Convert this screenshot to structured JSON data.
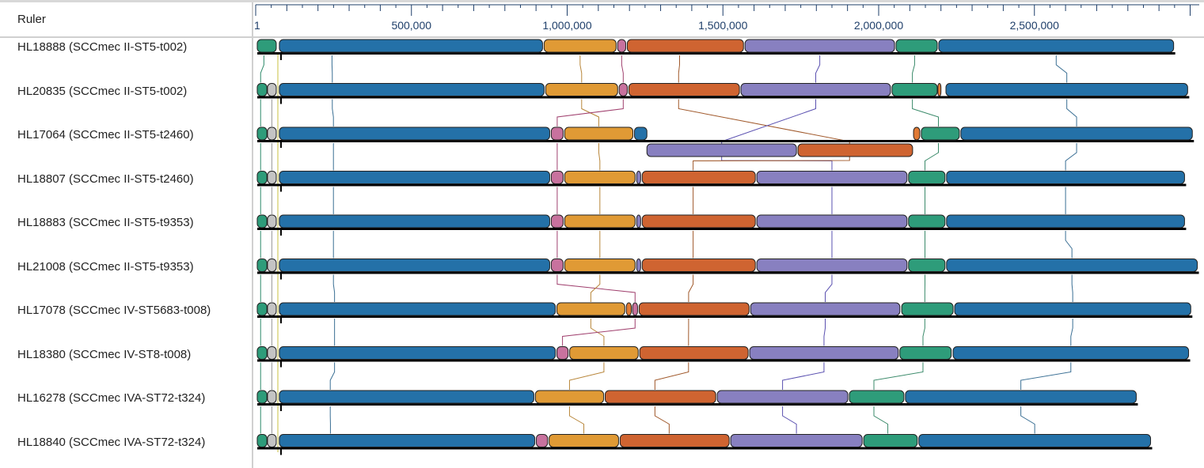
{
  "ruler": {
    "label": "Ruler",
    "ticks": [
      {
        "value": 1,
        "label": "1"
      },
      {
        "value": 500000,
        "label": "500,000"
      },
      {
        "value": 1000000,
        "label": "1,000,000"
      },
      {
        "value": 1500000,
        "label": "1,500,000"
      },
      {
        "value": 2000000,
        "label": "2,000,000"
      },
      {
        "value": 2500000,
        "label": "2,500,000"
      }
    ],
    "max_kbp": 3030
  },
  "colors": {
    "G": "#2e9c7a",
    "Gy": "#c4c4c4",
    "B": "#2471a8",
    "O": "#e09a35",
    "P": "#c8729e",
    "R": "#cf6431",
    "V": "#8880c0",
    "G2": "#2e9c7a",
    "B2": "#2471a8",
    "x": "#e07a35"
  },
  "genomes": [
    {
      "label": "HL18888 (SCCmec II-ST5-t002)",
      "blocks": [
        [
          "G",
          5,
          66
        ],
        [
          "B",
          76,
          921
        ],
        [
          "O",
          926,
          1157
        ],
        [
          "P",
          1162,
          1188
        ],
        [
          "R",
          1193,
          1566
        ],
        [
          "V",
          1571,
          2051
        ],
        [
          "G2",
          2056,
          2188
        ],
        [
          "B2",
          2193,
          2947
        ]
      ]
    },
    {
      "label": "HL20835 (SCCmec II-ST5-t002)",
      "blocks": [
        [
          "G",
          5,
          36
        ],
        [
          "Gy",
          38,
          66
        ],
        [
          "B",
          76,
          926
        ],
        [
          "O",
          931,
          1162
        ],
        [
          "P",
          1167,
          1193
        ],
        [
          "R",
          1198,
          1553
        ],
        [
          "V",
          1558,
          2038
        ],
        [
          "G2",
          2043,
          2188
        ],
        [
          "x",
          2190,
          2200
        ],
        [
          "B2",
          2216,
          2992
        ]
      ]
    },
    {
      "label": "HL17064 (SCCmec II-ST5-t2460)",
      "blocks": [
        [
          "G",
          5,
          36
        ],
        [
          "Gy",
          38,
          66
        ],
        [
          "B",
          76,
          944
        ],
        [
          "P",
          949,
          987
        ],
        [
          "O",
          992,
          1211
        ],
        [
          "B2s",
          1216,
          1256
        ],
        [
          "V",
          1256,
          1736,
          1
        ],
        [
          "R",
          1741,
          2109,
          1
        ],
        [
          "x",
          2112,
          2132
        ],
        [
          "G2",
          2137,
          2259
        ],
        [
          "B2",
          2264,
          3007
        ]
      ]
    },
    {
      "label": "HL18807 (SCCmec II-ST5-t2460)",
      "blocks": [
        [
          "G",
          5,
          36
        ],
        [
          "Gy",
          38,
          66
        ],
        [
          "B",
          76,
          944
        ],
        [
          "P",
          949,
          987
        ],
        [
          "O",
          992,
          1218
        ],
        [
          "Vs",
          1223,
          1236
        ],
        [
          "R",
          1241,
          1604
        ],
        [
          "V",
          1609,
          2091
        ],
        [
          "G2",
          2096,
          2213
        ],
        [
          "B2",
          2218,
          2982
        ]
      ]
    },
    {
      "label": "HL18883 (SCCmec II-ST5-t9353)",
      "blocks": [
        [
          "G",
          5,
          36
        ],
        [
          "Gy",
          38,
          66
        ],
        [
          "B",
          76,
          944
        ],
        [
          "P",
          949,
          987
        ],
        [
          "O",
          992,
          1218
        ],
        [
          "Vs",
          1223,
          1236
        ],
        [
          "R",
          1241,
          1604
        ],
        [
          "V",
          1609,
          2091
        ],
        [
          "G2",
          2096,
          2213
        ],
        [
          "B2",
          2218,
          2982
        ]
      ]
    },
    {
      "label": "HL21008 (SCCmec II-ST5-t9353)",
      "blocks": [
        [
          "G",
          5,
          36
        ],
        [
          "Gy",
          38,
          66
        ],
        [
          "B",
          76,
          944
        ],
        [
          "P",
          949,
          987
        ],
        [
          "O",
          992,
          1218
        ],
        [
          "Vs",
          1223,
          1236
        ],
        [
          "R",
          1241,
          1604
        ],
        [
          "V",
          1609,
          2091
        ],
        [
          "G2",
          2096,
          2213
        ],
        [
          "B2",
          2218,
          3023
        ]
      ]
    },
    {
      "label": "HL17078 (SCCmec IV-ST5683-t008)",
      "blocks": [
        [
          "G",
          5,
          36
        ],
        [
          "Gy",
          38,
          66
        ],
        [
          "B",
          76,
          962
        ],
        [
          "O",
          967,
          1185
        ],
        [
          "x",
          1190,
          1206
        ],
        [
          "P",
          1210,
          1226
        ],
        [
          "R",
          1231,
          1584
        ],
        [
          "V",
          1589,
          2068
        ],
        [
          "G2",
          2074,
          2239
        ],
        [
          "B2",
          2244,
          3002
        ]
      ]
    },
    {
      "label": "HL18380 (SCCmec IV-ST8-t008)",
      "blocks": [
        [
          "G",
          5,
          36
        ],
        [
          "Gy",
          38,
          66
        ],
        [
          "B",
          76,
          962
        ],
        [
          "P",
          967,
          1003
        ],
        [
          "O",
          1008,
          1228
        ],
        [
          "R",
          1233,
          1581
        ],
        [
          "V",
          1586,
          2063
        ],
        [
          "G2",
          2068,
          2233
        ],
        [
          "B2",
          2239,
          2995
        ]
      ]
    },
    {
      "label": "HL16278 (SCCmec IVA-ST72-t324)",
      "blocks": [
        [
          "G",
          5,
          36
        ],
        [
          "Gy",
          38,
          66
        ],
        [
          "B",
          76,
          893
        ],
        [
          "O",
          898,
          1117
        ],
        [
          "R",
          1122,
          1477
        ],
        [
          "V",
          1482,
          1901
        ],
        [
          "G2",
          1906,
          2081
        ],
        [
          "B2",
          2086,
          2827
        ]
      ]
    },
    {
      "label": "HL18840 (SCCmec IVA-ST72-t324)",
      "blocks": [
        [
          "G",
          5,
          36
        ],
        [
          "Gy",
          38,
          66
        ],
        [
          "B",
          76,
          896
        ],
        [
          "P",
          901,
          937
        ],
        [
          "O",
          942,
          1165
        ],
        [
          "R",
          1170,
          1520
        ],
        [
          "V",
          1525,
          1947
        ],
        [
          "G2",
          1952,
          2124
        ],
        [
          "B2",
          2129,
          2873
        ]
      ]
    }
  ]
}
